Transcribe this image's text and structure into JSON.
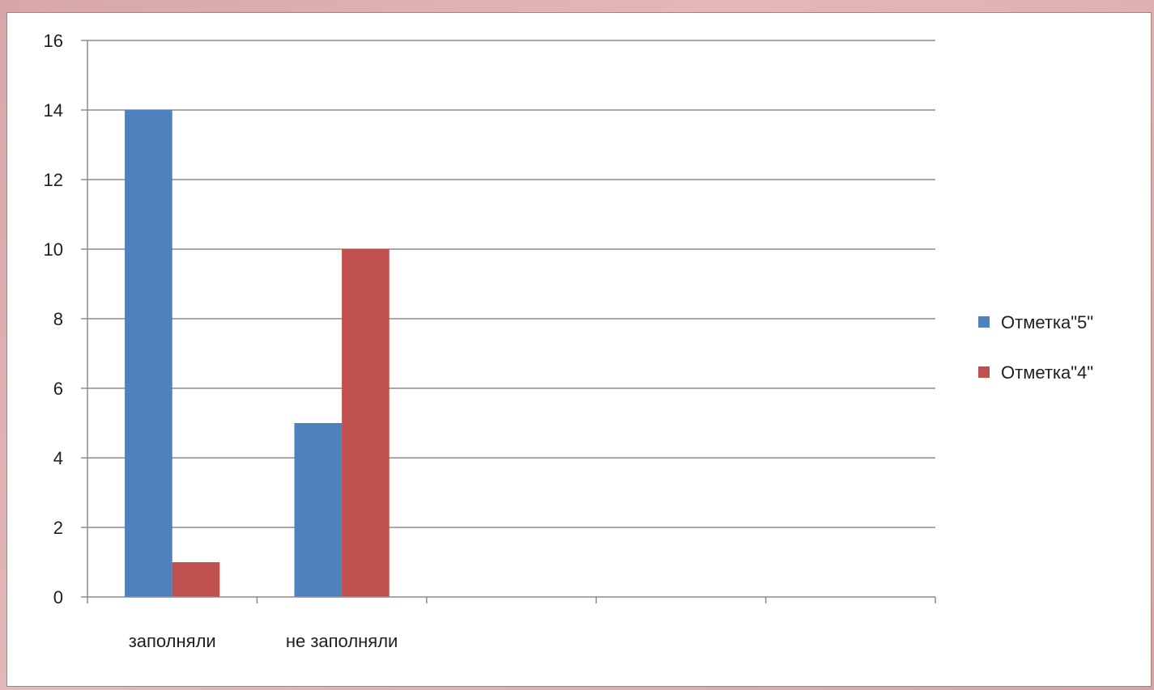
{
  "chart_data": {
    "type": "bar",
    "categories": [
      "заполняли",
      "не заполняли",
      "",
      "",
      ""
    ],
    "series": [
      {
        "name": "Отметка\"5\"",
        "values": [
          14,
          5,
          null,
          null,
          null
        ],
        "color": "#4f81bd"
      },
      {
        "name": "Отметка\"4\"",
        "values": [
          1,
          10,
          null,
          null,
          null
        ],
        "color": "#c0504d"
      }
    ],
    "title": "",
    "xlabel": "",
    "ylabel": "",
    "ylim": [
      0,
      16
    ],
    "yticks": [
      "0",
      "2",
      "4",
      "6",
      "8",
      "10",
      "12",
      "14",
      "16"
    ],
    "grid": true,
    "legend_position": "right"
  },
  "colors": {
    "gridline": "#8c8c8c",
    "axis": "#8c8c8c",
    "background": "#ffffff",
    "frame_background": "#dca9ab"
  }
}
